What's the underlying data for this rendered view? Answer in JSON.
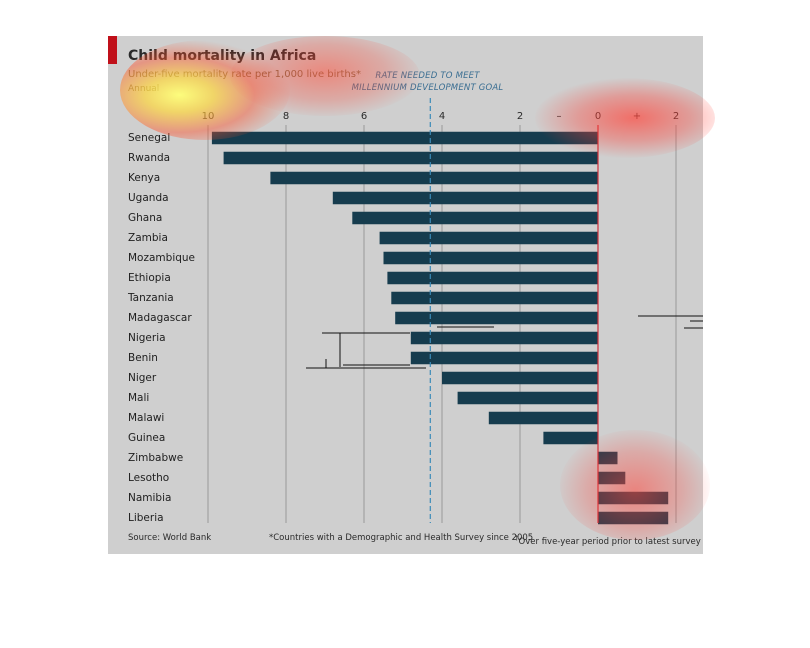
{
  "header": {
    "title": "Child mortality in Africa",
    "subtitle": "Under-five mortality rate per 1,000 live births*",
    "subtitle2": "Annual",
    "goal_line1": "RATE NEEDED TO MEET",
    "goal_line2": "MILLENNIUM DEVELOPMENT GOAL"
  },
  "footer": {
    "source": "Source: World Bank",
    "note1": "*Countries with a Demographic and Health Survey since 2005",
    "note2_mark": "†",
    "note2": "Over five-year period prior to latest survey"
  },
  "colors": {
    "bar": "#163c4e",
    "panel": "#cfcfcf",
    "zero_line": "#d0303a",
    "goal_line": "#3a8ab8",
    "accent": "#c0101a"
  },
  "chart_data": {
    "type": "bar",
    "orientation": "horizontal",
    "axis_reversed": true,
    "xlim": [
      10.2,
      -2.1
    ],
    "ticks": [
      {
        "value": 10,
        "label": "10"
      },
      {
        "value": 8,
        "label": "8"
      },
      {
        "value": 6,
        "label": "6"
      },
      {
        "value": 4,
        "label": "4"
      },
      {
        "value": 2,
        "label": "2"
      },
      {
        "value": 1,
        "label": "–"
      },
      {
        "value": 0,
        "label": "0"
      },
      {
        "value": -1,
        "label": "+"
      },
      {
        "value": -2,
        "label": "2"
      }
    ],
    "goal_value": 4.3,
    "grid": true,
    "categories": [
      "Senegal",
      "Rwanda",
      "Kenya",
      "Uganda",
      "Ghana",
      "Zambia",
      "Mozambique",
      "Ethiopia",
      "Tanzania",
      "Madagascar",
      "Nigeria",
      "Benin",
      "Niger",
      "Mali",
      "Malawi",
      "Guinea",
      "Zimbabwe",
      "Lesotho",
      "Namibia",
      "Liberia"
    ],
    "values": [
      9.9,
      9.6,
      8.4,
      6.8,
      6.3,
      5.6,
      5.5,
      5.4,
      5.3,
      5.2,
      4.8,
      4.8,
      4.0,
      3.6,
      2.8,
      1.4,
      -0.5,
      -0.7,
      -1.8,
      -1.8
    ]
  }
}
